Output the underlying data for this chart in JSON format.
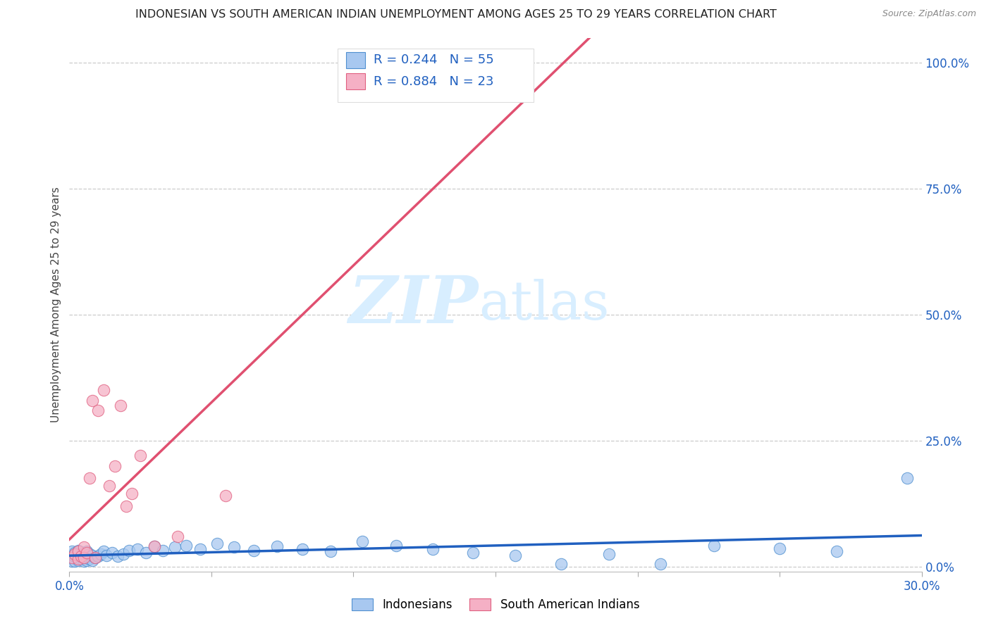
{
  "title": "INDONESIAN VS SOUTH AMERICAN INDIAN UNEMPLOYMENT AMONG AGES 25 TO 29 YEARS CORRELATION CHART",
  "source": "Source: ZipAtlas.com",
  "ylabel": "Unemployment Among Ages 25 to 29 years",
  "xlim": [
    0.0,
    0.3
  ],
  "ylim": [
    -0.01,
    1.05
  ],
  "xticks": [
    0.0,
    0.05,
    0.1,
    0.15,
    0.2,
    0.25,
    0.3
  ],
  "yticks_right": [
    0.0,
    0.25,
    0.5,
    0.75,
    1.0
  ],
  "ytick_labels_right": [
    "0.0%",
    "25.0%",
    "50.0%",
    "75.0%",
    "100.0%"
  ],
  "blue_scatter_color": "#A8C8F0",
  "blue_edge_color": "#5090D0",
  "pink_scatter_color": "#F5B0C5",
  "pink_edge_color": "#E06080",
  "blue_line_color": "#2060C0",
  "pink_line_color": "#E05070",
  "watermark_color": "#D8EEFF",
  "indonesian_R": 0.244,
  "indonesian_N": 55,
  "sa_indian_R": 0.884,
  "sa_indian_N": 23,
  "indo_x": [
    0.001,
    0.001,
    0.001,
    0.002,
    0.002,
    0.002,
    0.003,
    0.003,
    0.003,
    0.004,
    0.004,
    0.005,
    0.005,
    0.005,
    0.006,
    0.006,
    0.006,
    0.007,
    0.007,
    0.008,
    0.008,
    0.009,
    0.01,
    0.011,
    0.012,
    0.013,
    0.015,
    0.017,
    0.019,
    0.021,
    0.024,
    0.027,
    0.03,
    0.033,
    0.037,
    0.041,
    0.046,
    0.052,
    0.058,
    0.065,
    0.073,
    0.082,
    0.092,
    0.103,
    0.115,
    0.128,
    0.142,
    0.157,
    0.173,
    0.19,
    0.208,
    0.227,
    0.25,
    0.27,
    0.295
  ],
  "indo_y": [
    0.01,
    0.02,
    0.03,
    0.01,
    0.02,
    0.028,
    0.012,
    0.022,
    0.032,
    0.015,
    0.025,
    0.01,
    0.018,
    0.026,
    0.012,
    0.022,
    0.03,
    0.015,
    0.025,
    0.012,
    0.022,
    0.018,
    0.02,
    0.025,
    0.03,
    0.022,
    0.028,
    0.02,
    0.025,
    0.032,
    0.035,
    0.028,
    0.04,
    0.032,
    0.038,
    0.042,
    0.035,
    0.045,
    0.038,
    0.032,
    0.04,
    0.035,
    0.03,
    0.05,
    0.042,
    0.035,
    0.028,
    0.022,
    0.005,
    0.025,
    0.005,
    0.042,
    0.036,
    0.03,
    0.175
  ],
  "sa_x": [
    0.001,
    0.002,
    0.003,
    0.003,
    0.004,
    0.005,
    0.005,
    0.006,
    0.007,
    0.008,
    0.009,
    0.01,
    0.012,
    0.014,
    0.016,
    0.018,
    0.02,
    0.022,
    0.025,
    0.03,
    0.038,
    0.055,
    0.155
  ],
  "sa_y": [
    0.018,
    0.025,
    0.015,
    0.03,
    0.02,
    0.038,
    0.018,
    0.028,
    0.175,
    0.33,
    0.018,
    0.31,
    0.35,
    0.16,
    0.2,
    0.32,
    0.12,
    0.145,
    0.22,
    0.04,
    0.06,
    0.14,
    1.0
  ]
}
